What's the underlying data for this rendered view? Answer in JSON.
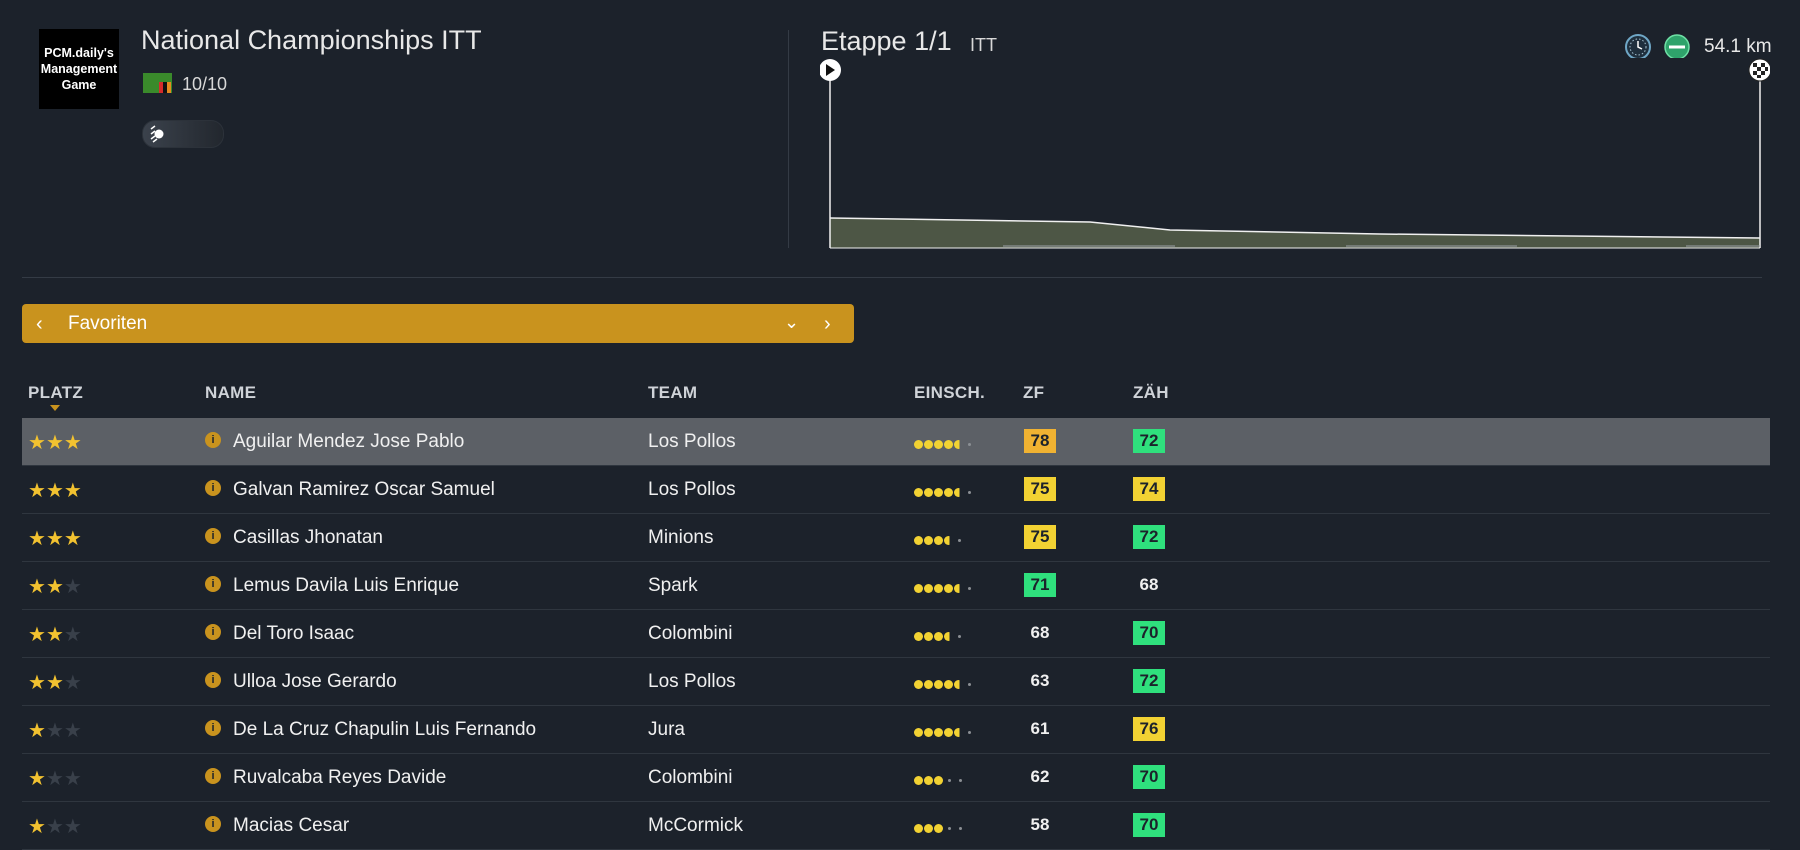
{
  "logo": {
    "text": "PCM.daily's Management Game"
  },
  "race": {
    "title": "National Championships ITT",
    "rank": "10/10",
    "flag_colors": [
      "#3a8a2b",
      "#d62b2b",
      "#111111",
      "#e58a1f"
    ]
  },
  "stage": {
    "title": "Etappe 1/1",
    "type": "ITT",
    "distance": "54.1 km"
  },
  "filter": {
    "label": "Favoriten"
  },
  "columns": {
    "platz": "PLATZ",
    "name": "NAME",
    "team": "TEAM",
    "einsch": "EINSCH.",
    "zf": "ZF",
    "zah": "ZÄH"
  },
  "colors": {
    "accent": "#c9931e",
    "star": "#f2c230",
    "orange": "#f0b232",
    "yellow": "#f2d233",
    "green": "#2fe07d"
  },
  "rows": [
    {
      "stars": 3,
      "name": "Aguilar Mendez Jose Pablo",
      "team": "Los Pollos",
      "dots": 4.5,
      "zf": "78",
      "zf_color": "orange",
      "zah": "72",
      "zah_color": "green",
      "selected": true
    },
    {
      "stars": 3,
      "name": "Galvan Ramirez Oscar Samuel",
      "team": "Los Pollos",
      "dots": 4.5,
      "zf": "75",
      "zf_color": "yellow",
      "zah": "74",
      "zah_color": "yellow"
    },
    {
      "stars": 3,
      "name": "Casillas Jhonatan",
      "team": "Minions",
      "dots": 3.5,
      "zf": "75",
      "zf_color": "yellow",
      "zah": "72",
      "zah_color": "green"
    },
    {
      "stars": 2,
      "name": "Lemus Davila Luis Enrique",
      "team": "Spark",
      "dots": 4.5,
      "zf": "71",
      "zf_color": "green",
      "zah": "68",
      "zah_color": "none"
    },
    {
      "stars": 2,
      "name": "Del Toro Isaac",
      "team": "Colombini",
      "dots": 3.5,
      "zf": "68",
      "zf_color": "none",
      "zah": "70",
      "zah_color": "green"
    },
    {
      "stars": 2,
      "name": "Ulloa Jose Gerardo",
      "team": "Los Pollos",
      "dots": 4.5,
      "zf": "63",
      "zf_color": "none",
      "zah": "72",
      "zah_color": "green"
    },
    {
      "stars": 1,
      "name": "De La Cruz Chapulin Luis Fernando",
      "team": "Jura",
      "dots": 4.5,
      "zf": "61",
      "zf_color": "none",
      "zah": "76",
      "zah_color": "yellow"
    },
    {
      "stars": 1,
      "name": "Ruvalcaba Reyes Davide",
      "team": "Colombini",
      "dots": 3,
      "zf": "62",
      "zf_color": "none",
      "zah": "70",
      "zah_color": "green"
    },
    {
      "stars": 1,
      "name": "Macias Cesar",
      "team": "McCormick",
      "dots": 3,
      "zf": "58",
      "zf_color": "none",
      "zah": "70",
      "zah_color": "green"
    }
  ]
}
